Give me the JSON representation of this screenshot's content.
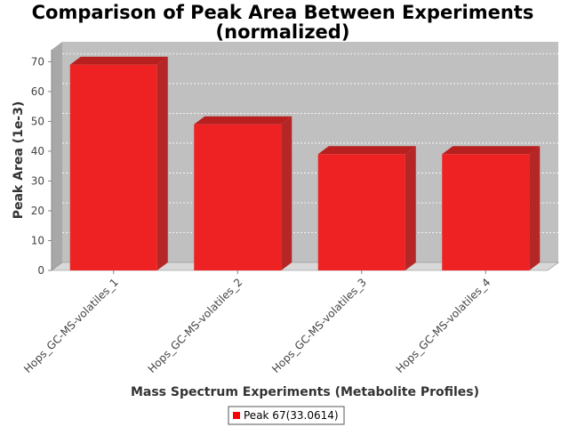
{
  "chart_data": {
    "type": "bar",
    "title_line1": "Comparison of Peak Area Between Experiments",
    "title_line2": "(normalized)",
    "xlabel": "Mass Spectrum Experiments (Metabolite Profiles)",
    "ylabel": "Peak Area (1e-3)",
    "categories": [
      "Hops_GC-MS-volatiles_1",
      "Hops_GC-MS-volatiles_2",
      "Hops_GC-MS-volatiles_3",
      "Hops_GC-MS-volatiles_4"
    ],
    "series": [
      {
        "name": "Peak 67(33.0614)",
        "values": [
          69,
          49,
          39,
          39
        ],
        "color": "#ee2222"
      }
    ],
    "ylim": [
      0,
      74
    ],
    "yticks": [
      0,
      10,
      20,
      30,
      40,
      50,
      60,
      70
    ],
    "grid": true,
    "legend_position": "bottom",
    "plot_background": "#c0c0c0"
  }
}
